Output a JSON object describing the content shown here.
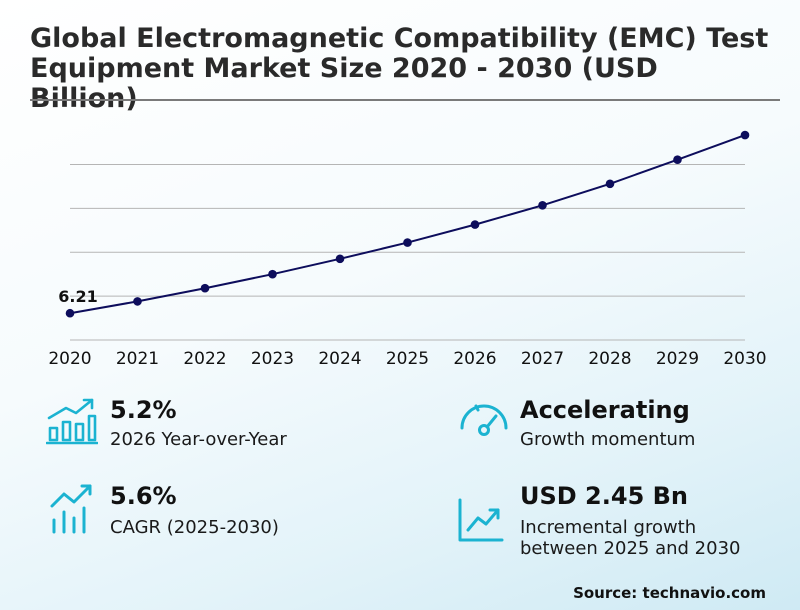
{
  "title": "Global Electromagnetic Compatibility (EMC) Test Equipment Market Size 2020 - 2030 (USD Billion)",
  "chart_data": {
    "type": "line",
    "categories": [
      "2020",
      "2021",
      "2022",
      "2023",
      "2024",
      "2025",
      "2026",
      "2027",
      "2028",
      "2029",
      "2030"
    ],
    "series": [
      {
        "name": "",
        "values": [
          6.21,
          6.48,
          6.78,
          7.1,
          7.45,
          7.82,
          8.23,
          8.67,
          9.16,
          9.71,
          10.27
        ]
      }
    ],
    "data_labels": [
      {
        "category": "2020",
        "text": "6.21"
      }
    ],
    "ylim": [
      5.6,
      10.5
    ],
    "gridlines": [
      6.6,
      7.6,
      8.6,
      9.6
    ],
    "grid": true,
    "y_axis_visible": false,
    "colors": {
      "line": "#0d0d5c",
      "marker": "#0d0d5c",
      "grid": "#b5b5b5"
    }
  },
  "stats": [
    {
      "icon": "bar-growth-icon",
      "value": "5.2%",
      "label": "2026 Year-over-Year"
    },
    {
      "icon": "speedometer-icon",
      "value": "Accelerating",
      "label": "Growth momentum"
    },
    {
      "icon": "trend-bars-icon",
      "value": "5.6%",
      "label": "CAGR (2025-2030)"
    },
    {
      "icon": "trend-chart-icon",
      "value": "USD 2.45 Bn",
      "label_line1": "Incremental growth",
      "label_line2": "between 2025 and 2030"
    }
  ],
  "icon_color": "#1bb3d1",
  "source": "Source: technavio.com"
}
